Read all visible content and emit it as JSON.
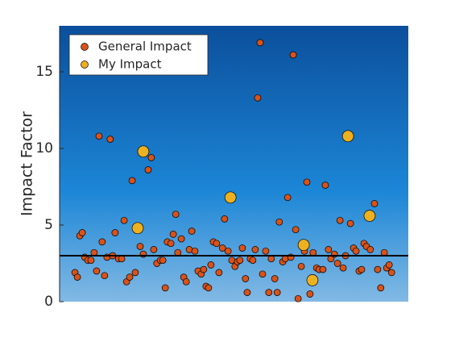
{
  "chart_data": {
    "type": "scatter",
    "ylabel": "Impact Factor",
    "xlim": [
      0,
      100
    ],
    "ylim": [
      0,
      18
    ],
    "yticks": [
      0,
      5,
      10,
      15
    ],
    "hline": 3,
    "legend": "upper left",
    "series": [
      {
        "name": "General Impact",
        "color": "#d95319",
        "size": 4,
        "x": [
          4.4,
          5.1,
          5.8,
          6.5,
          7.2,
          8.1,
          9.0,
          9.9,
          10.6,
          11.3,
          12.2,
          12.9,
          13.6,
          14.5,
          15.2,
          15.9,
          16.9,
          17.8,
          18.5,
          19.2,
          20.1,
          20.8,
          21.7,
          23.1,
          24.0,
          25.4,
          26.3,
          27.0,
          27.9,
          28.9,
          29.6,
          30.3,
          30.9,
          31.9,
          32.6,
          33.3,
          33.9,
          34.9,
          35.6,
          36.3,
          37.2,
          37.9,
          38.8,
          39.7,
          40.6,
          41.3,
          42.0,
          42.7,
          43.4,
          44.1,
          45.0,
          45.7,
          46.7,
          47.3,
          48.3,
          49.4,
          50.3,
          51.0,
          51.7,
          52.4,
          53.3,
          53.8,
          54.7,
          55.4,
          56.1,
          56.8,
          57.5,
          58.2,
          59.1,
          60.0,
          60.7,
          61.7,
          62.4,
          63.0,
          64.0,
          64.7,
          65.4,
          66.3,
          67.0,
          67.7,
          68.4,
          69.3,
          70.2,
          70.9,
          71.8,
          72.7,
          73.7,
          74.4,
          75.5,
          76.2,
          77.1,
          77.8,
          78.8,
          79.7,
          80.4,
          81.3,
          82.0,
          83.4,
          84.3,
          85.0,
          85.9,
          86.6,
          87.3,
          88.0,
          89.1,
          90.3,
          91.2,
          92.1,
          93.1,
          93.8,
          94.5,
          95.2
        ],
        "values": [
          1.9,
          1.6,
          4.3,
          4.5,
          2.9,
          2.7,
          2.7,
          3.2,
          2.0,
          10.8,
          3.9,
          1.7,
          2.9,
          10.6,
          3.0,
          4.5,
          2.8,
          2.8,
          5.3,
          1.3,
          1.6,
          7.9,
          1.9,
          3.6,
          3.1,
          8.6,
          9.4,
          3.4,
          2.5,
          2.7,
          2.7,
          0.9,
          3.9,
          3.8,
          4.4,
          5.7,
          3.2,
          4.1,
          1.6,
          1.3,
          3.4,
          4.6,
          3.3,
          2.0,
          1.8,
          2.1,
          1.0,
          0.9,
          2.4,
          3.9,
          3.8,
          1.9,
          3.5,
          5.4,
          3.3,
          2.7,
          2.3,
          2.6,
          2.7,
          3.5,
          1.5,
          0.6,
          2.8,
          2.7,
          3.4,
          13.3,
          16.9,
          1.8,
          3.3,
          0.6,
          2.8,
          1.5,
          0.6,
          5.2,
          2.6,
          2.8,
          6.8,
          2.9,
          16.1,
          4.7,
          0.2,
          2.3,
          3.3,
          7.8,
          0.5,
          3.2,
          2.2,
          2.1,
          2.1,
          7.6,
          3.4,
          2.8,
          3.1,
          2.5,
          5.3,
          2.2,
          3.0,
          5.1,
          3.5,
          3.3,
          2.0,
          2.1,
          3.8,
          3.6,
          3.4,
          6.4,
          2.1,
          0.9,
          3.2,
          2.2,
          2.4,
          1.9
        ]
      },
      {
        "name": "My Impact",
        "color": "#edb120",
        "size": 7,
        "x": [
          22.4,
          24.0,
          49.0,
          70.0,
          72.5,
          82.7,
          88.9
        ],
        "values": [
          4.8,
          9.8,
          6.8,
          3.7,
          1.4,
          10.8,
          5.6
        ]
      }
    ]
  }
}
